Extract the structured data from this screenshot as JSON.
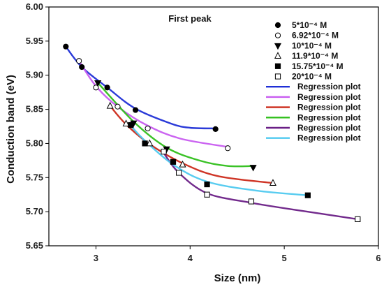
{
  "chart_data": {
    "type": "scatter",
    "title": "First peak",
    "xlabel": "Size (nm)",
    "ylabel": "Conduction band (eV)",
    "xlim": [
      2.5,
      6.0
    ],
    "ylim": [
      5.65,
      6.0
    ],
    "xticks": [
      "3",
      "4",
      "5",
      "6"
    ],
    "xtick_values": [
      3,
      4,
      5,
      6
    ],
    "yticks": [
      "5.65",
      "5.70",
      "5.75",
      "5.80",
      "5.85",
      "5.90",
      "5.95",
      "6.00"
    ],
    "ytick_values": [
      5.65,
      5.7,
      5.75,
      5.8,
      5.85,
      5.9,
      5.95,
      6.0
    ],
    "legend_position": "top-right",
    "series": [
      {
        "name": "5*10⁻⁴ M",
        "marker": "circle-filled",
        "color": "#000000",
        "x": [
          2.68,
          2.85,
          3.12,
          3.42,
          4.27
        ],
        "y": [
          5.942,
          5.912,
          5.882,
          5.849,
          5.821
        ]
      },
      {
        "name": "6.92*10⁻⁴ M",
        "marker": "circle-open",
        "color": "#000000",
        "x": [
          2.82,
          3.0,
          3.23,
          3.55,
          4.4
        ],
        "y": [
          5.921,
          5.882,
          5.854,
          5.822,
          5.793
        ]
      },
      {
        "name": "10*10⁻⁴ M",
        "marker": "triangle-down-filled",
        "color": "#000000",
        "x": [
          3.02,
          3.4,
          3.75,
          4.67
        ],
        "y": [
          5.889,
          5.83,
          5.792,
          5.765
        ]
      },
      {
        "name": "11.9*10⁻⁴ M",
        "marker": "triangle-up-open",
        "color": "#000000",
        "x": [
          3.15,
          3.32,
          3.57,
          3.92,
          4.88
        ],
        "y": [
          5.855,
          5.829,
          5.8,
          5.769,
          5.742
        ]
      },
      {
        "name": "15.75*10⁻⁴ M",
        "marker": "square-filled",
        "color": "#000000",
        "x": [
          3.37,
          3.52,
          3.82,
          4.18,
          5.25
        ],
        "y": [
          5.827,
          5.8,
          5.773,
          5.74,
          5.724
        ]
      },
      {
        "name": "20*10⁻⁴ M",
        "marker": "square-open",
        "color": "#000000",
        "x": [
          3.72,
          3.88,
          4.18,
          4.65,
          5.78
        ],
        "y": [
          5.788,
          5.757,
          5.725,
          5.715,
          5.689
        ]
      }
    ],
    "regression_lines": [
      {
        "name": "Regression plot",
        "color": "#1f2fd6",
        "x": [
          2.68,
          2.85,
          3.12,
          3.42,
          3.8,
          4.0,
          4.27
        ],
        "y": [
          5.942,
          5.912,
          5.882,
          5.851,
          5.829,
          5.823,
          5.822
        ]
      },
      {
        "name": "Regression plot",
        "color": "#c85cf0",
        "x": [
          2.82,
          3.0,
          3.23,
          3.55,
          3.9,
          4.4
        ],
        "y": [
          5.921,
          5.884,
          5.854,
          5.826,
          5.807,
          5.795
        ]
      },
      {
        "name": "Regression plot",
        "color": "#cc2a1a",
        "x": [
          3.15,
          3.32,
          3.57,
          3.92,
          4.3,
          4.88
        ],
        "y": [
          5.855,
          5.828,
          5.799,
          5.771,
          5.752,
          5.742
        ]
      },
      {
        "name": "Regression plot",
        "color": "#2fbf1a",
        "x": [
          3.02,
          3.4,
          3.75,
          4.1,
          4.4,
          4.67
        ],
        "y": [
          5.889,
          5.832,
          5.794,
          5.775,
          5.767,
          5.767
        ]
      },
      {
        "name": "Regression plot",
        "color": "#6a1f86",
        "x": [
          3.72,
          3.88,
          4.18,
          4.65,
          5.2,
          5.78
        ],
        "y": [
          5.786,
          5.757,
          5.727,
          5.713,
          5.701,
          5.689
        ]
      },
      {
        "name": "Regression plot",
        "color": "#4fc9ef",
        "x": [
          3.37,
          3.52,
          3.82,
          4.18,
          4.7,
          5.25
        ],
        "y": [
          5.826,
          5.804,
          5.769,
          5.744,
          5.731,
          5.724
        ]
      }
    ]
  }
}
